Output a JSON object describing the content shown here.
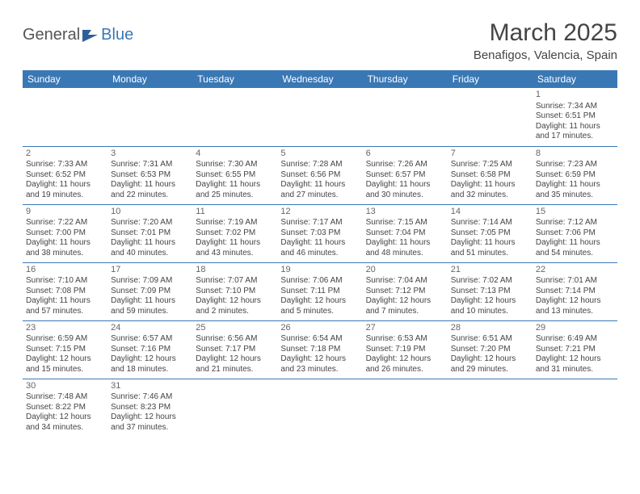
{
  "logo": {
    "text1": "General",
    "text2": "Blue"
  },
  "title": "March 2025",
  "location": "Benafigos, Valencia, Spain",
  "colors": {
    "header_bg": "#3a78b5",
    "header_text": "#ffffff",
    "border": "#3a78b5",
    "text": "#444444",
    "logo_gray": "#555555",
    "logo_blue": "#3a78b5"
  },
  "weekdays": [
    "Sunday",
    "Monday",
    "Tuesday",
    "Wednesday",
    "Thursday",
    "Friday",
    "Saturday"
  ],
  "weeks": [
    [
      null,
      null,
      null,
      null,
      null,
      null,
      {
        "d": "1",
        "sr": "Sunrise: 7:34 AM",
        "ss": "Sunset: 6:51 PM",
        "dl1": "Daylight: 11 hours",
        "dl2": "and 17 minutes."
      }
    ],
    [
      {
        "d": "2",
        "sr": "Sunrise: 7:33 AM",
        "ss": "Sunset: 6:52 PM",
        "dl1": "Daylight: 11 hours",
        "dl2": "and 19 minutes."
      },
      {
        "d": "3",
        "sr": "Sunrise: 7:31 AM",
        "ss": "Sunset: 6:53 PM",
        "dl1": "Daylight: 11 hours",
        "dl2": "and 22 minutes."
      },
      {
        "d": "4",
        "sr": "Sunrise: 7:30 AM",
        "ss": "Sunset: 6:55 PM",
        "dl1": "Daylight: 11 hours",
        "dl2": "and 25 minutes."
      },
      {
        "d": "5",
        "sr": "Sunrise: 7:28 AM",
        "ss": "Sunset: 6:56 PM",
        "dl1": "Daylight: 11 hours",
        "dl2": "and 27 minutes."
      },
      {
        "d": "6",
        "sr": "Sunrise: 7:26 AM",
        "ss": "Sunset: 6:57 PM",
        "dl1": "Daylight: 11 hours",
        "dl2": "and 30 minutes."
      },
      {
        "d": "7",
        "sr": "Sunrise: 7:25 AM",
        "ss": "Sunset: 6:58 PM",
        "dl1": "Daylight: 11 hours",
        "dl2": "and 32 minutes."
      },
      {
        "d": "8",
        "sr": "Sunrise: 7:23 AM",
        "ss": "Sunset: 6:59 PM",
        "dl1": "Daylight: 11 hours",
        "dl2": "and 35 minutes."
      }
    ],
    [
      {
        "d": "9",
        "sr": "Sunrise: 7:22 AM",
        "ss": "Sunset: 7:00 PM",
        "dl1": "Daylight: 11 hours",
        "dl2": "and 38 minutes."
      },
      {
        "d": "10",
        "sr": "Sunrise: 7:20 AM",
        "ss": "Sunset: 7:01 PM",
        "dl1": "Daylight: 11 hours",
        "dl2": "and 40 minutes."
      },
      {
        "d": "11",
        "sr": "Sunrise: 7:19 AM",
        "ss": "Sunset: 7:02 PM",
        "dl1": "Daylight: 11 hours",
        "dl2": "and 43 minutes."
      },
      {
        "d": "12",
        "sr": "Sunrise: 7:17 AM",
        "ss": "Sunset: 7:03 PM",
        "dl1": "Daylight: 11 hours",
        "dl2": "and 46 minutes."
      },
      {
        "d": "13",
        "sr": "Sunrise: 7:15 AM",
        "ss": "Sunset: 7:04 PM",
        "dl1": "Daylight: 11 hours",
        "dl2": "and 48 minutes."
      },
      {
        "d": "14",
        "sr": "Sunrise: 7:14 AM",
        "ss": "Sunset: 7:05 PM",
        "dl1": "Daylight: 11 hours",
        "dl2": "and 51 minutes."
      },
      {
        "d": "15",
        "sr": "Sunrise: 7:12 AM",
        "ss": "Sunset: 7:06 PM",
        "dl1": "Daylight: 11 hours",
        "dl2": "and 54 minutes."
      }
    ],
    [
      {
        "d": "16",
        "sr": "Sunrise: 7:10 AM",
        "ss": "Sunset: 7:08 PM",
        "dl1": "Daylight: 11 hours",
        "dl2": "and 57 minutes."
      },
      {
        "d": "17",
        "sr": "Sunrise: 7:09 AM",
        "ss": "Sunset: 7:09 PM",
        "dl1": "Daylight: 11 hours",
        "dl2": "and 59 minutes."
      },
      {
        "d": "18",
        "sr": "Sunrise: 7:07 AM",
        "ss": "Sunset: 7:10 PM",
        "dl1": "Daylight: 12 hours",
        "dl2": "and 2 minutes."
      },
      {
        "d": "19",
        "sr": "Sunrise: 7:06 AM",
        "ss": "Sunset: 7:11 PM",
        "dl1": "Daylight: 12 hours",
        "dl2": "and 5 minutes."
      },
      {
        "d": "20",
        "sr": "Sunrise: 7:04 AM",
        "ss": "Sunset: 7:12 PM",
        "dl1": "Daylight: 12 hours",
        "dl2": "and 7 minutes."
      },
      {
        "d": "21",
        "sr": "Sunrise: 7:02 AM",
        "ss": "Sunset: 7:13 PM",
        "dl1": "Daylight: 12 hours",
        "dl2": "and 10 minutes."
      },
      {
        "d": "22",
        "sr": "Sunrise: 7:01 AM",
        "ss": "Sunset: 7:14 PM",
        "dl1": "Daylight: 12 hours",
        "dl2": "and 13 minutes."
      }
    ],
    [
      {
        "d": "23",
        "sr": "Sunrise: 6:59 AM",
        "ss": "Sunset: 7:15 PM",
        "dl1": "Daylight: 12 hours",
        "dl2": "and 15 minutes."
      },
      {
        "d": "24",
        "sr": "Sunrise: 6:57 AM",
        "ss": "Sunset: 7:16 PM",
        "dl1": "Daylight: 12 hours",
        "dl2": "and 18 minutes."
      },
      {
        "d": "25",
        "sr": "Sunrise: 6:56 AM",
        "ss": "Sunset: 7:17 PM",
        "dl1": "Daylight: 12 hours",
        "dl2": "and 21 minutes."
      },
      {
        "d": "26",
        "sr": "Sunrise: 6:54 AM",
        "ss": "Sunset: 7:18 PM",
        "dl1": "Daylight: 12 hours",
        "dl2": "and 23 minutes."
      },
      {
        "d": "27",
        "sr": "Sunrise: 6:53 AM",
        "ss": "Sunset: 7:19 PM",
        "dl1": "Daylight: 12 hours",
        "dl2": "and 26 minutes."
      },
      {
        "d": "28",
        "sr": "Sunrise: 6:51 AM",
        "ss": "Sunset: 7:20 PM",
        "dl1": "Daylight: 12 hours",
        "dl2": "and 29 minutes."
      },
      {
        "d": "29",
        "sr": "Sunrise: 6:49 AM",
        "ss": "Sunset: 7:21 PM",
        "dl1": "Daylight: 12 hours",
        "dl2": "and 31 minutes."
      }
    ],
    [
      {
        "d": "30",
        "sr": "Sunrise: 7:48 AM",
        "ss": "Sunset: 8:22 PM",
        "dl1": "Daylight: 12 hours",
        "dl2": "and 34 minutes."
      },
      {
        "d": "31",
        "sr": "Sunrise: 7:46 AM",
        "ss": "Sunset: 8:23 PM",
        "dl1": "Daylight: 12 hours",
        "dl2": "and 37 minutes."
      },
      null,
      null,
      null,
      null,
      null
    ]
  ]
}
